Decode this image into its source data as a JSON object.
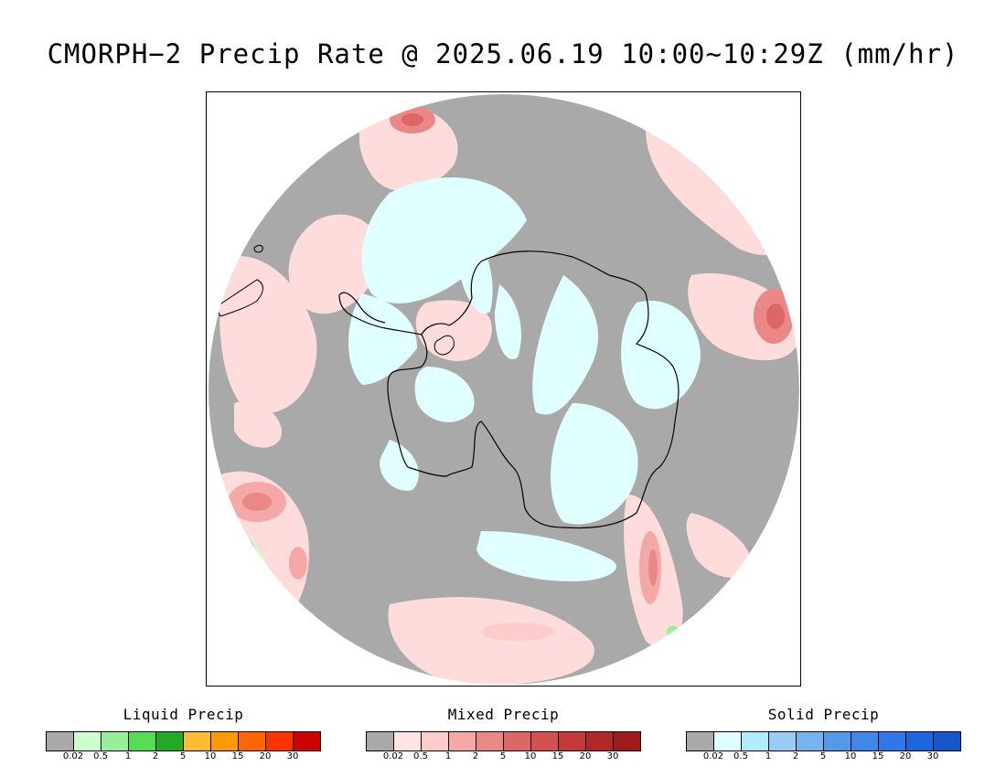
{
  "title": "CMORPH−2 Precip Rate @ 2025.06.19 10:00~10:29Z (mm/hr)",
  "map": {
    "projection": "south-polar-stereographic",
    "ocean_color": "#a9a9a9",
    "land_outline_color": "#000000",
    "regions": [
      {
        "name": "antarctic-snow-region",
        "category": "solid",
        "level": "0.02"
      },
      {
        "name": "southern-ocean-mixed-region",
        "category": "mixed",
        "level": "0.02"
      },
      {
        "name": "south-pacific-mixed-cell",
        "category": "mixed",
        "level": "1"
      },
      {
        "name": "south-atlantic-liquid-region",
        "category": "liquid",
        "level": "0.5"
      }
    ]
  },
  "legends": [
    {
      "id": "liquid",
      "title": "Liquid Precip",
      "colors": [
        "#a9a9a9",
        "#ccffcc",
        "#99ee99",
        "#55dd55",
        "#22aa22",
        "#ffbb33",
        "#ff9900",
        "#ff6600",
        "#ff3300",
        "#cc0000"
      ],
      "ticks": [
        "0.02",
        "0.5",
        "1",
        "2",
        "5",
        "10",
        "15",
        "20",
        "30"
      ]
    },
    {
      "id": "mixed",
      "title": "Mixed Precip",
      "colors": [
        "#a9a9a9",
        "#ffe4e4",
        "#ffcccc",
        "#f4a8a8",
        "#ea8888",
        "#dd6666",
        "#d25050",
        "#c43a3a",
        "#b22828",
        "#a01c1c"
      ],
      "ticks": [
        "0.02",
        "0.5",
        "1",
        "2",
        "5",
        "10",
        "15",
        "20",
        "30"
      ]
    },
    {
      "id": "solid",
      "title": "Solid Precip",
      "colors": [
        "#a9a9a9",
        "#e0ffff",
        "#b0ecfa",
        "#99ccf5",
        "#77b4ef",
        "#559ae8",
        "#4088e8",
        "#2e78e8",
        "#1e66dd",
        "#1456cc"
      ],
      "ticks": [
        "0.02",
        "0.5",
        "1",
        "2",
        "5",
        "10",
        "15",
        "20",
        "30"
      ]
    }
  ]
}
